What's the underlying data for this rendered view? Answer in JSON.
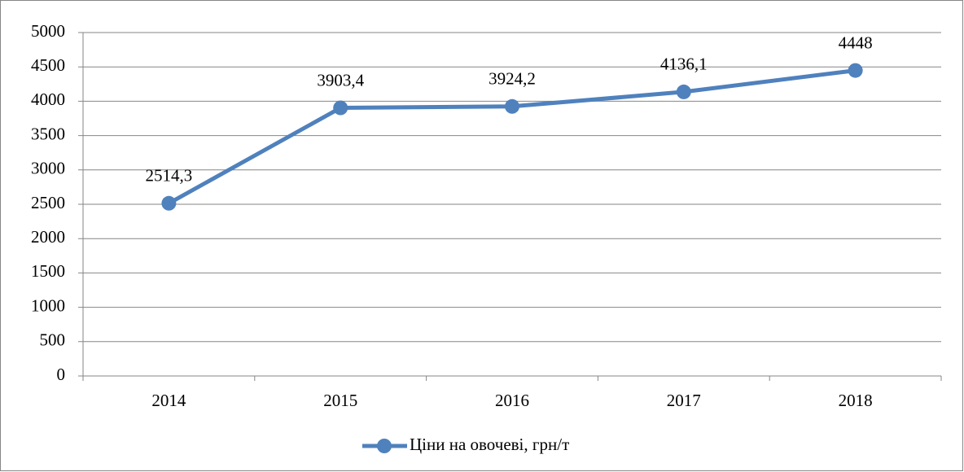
{
  "chart_data": {
    "type": "line",
    "categories": [
      "2014",
      "2015",
      "2016",
      "2017",
      "2018"
    ],
    "series": [
      {
        "name": "Ціни на овочеві, грн/т",
        "color": "#4f81bd",
        "values": [
          2514.3,
          3903.4,
          3924.2,
          4136.1,
          4448
        ],
        "value_labels": [
          "2514,3",
          "3903,4",
          "3924,2",
          "4136,1",
          "4448"
        ]
      }
    ],
    "ylim": [
      0,
      5000
    ],
    "yticks": [
      0,
      500,
      1000,
      1500,
      2000,
      2500,
      3000,
      3500,
      4000,
      4500,
      5000
    ],
    "grid": true,
    "legend": "bottom"
  }
}
